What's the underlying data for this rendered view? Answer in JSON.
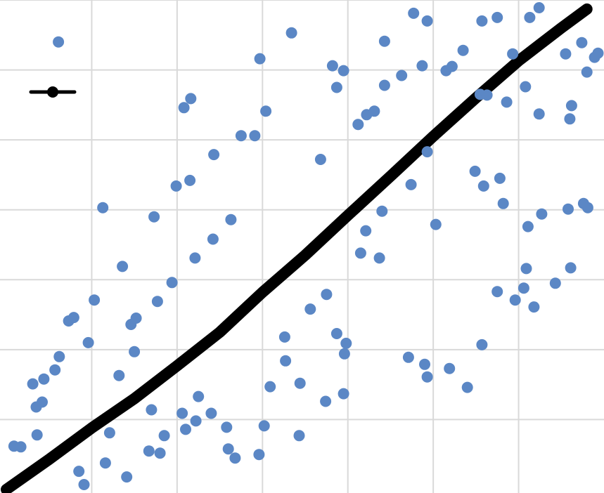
{
  "chart_data": {
    "type": "scatter",
    "title": "",
    "xlabel": "",
    "ylabel": "",
    "xlim": [
      0,
      7
    ],
    "ylim": [
      0,
      7
    ],
    "grid": true,
    "x_gridlines": [
      1,
      2,
      3,
      4,
      5,
      6
    ],
    "y_gridlines": [
      1,
      2,
      3,
      4,
      5,
      6,
      7
    ],
    "legend": {
      "placement": "top-left",
      "entries": [
        {
          "marker": "line-with-dot",
          "color": "#000000",
          "label": ""
        }
      ]
    },
    "series": [
      {
        "color": "#000000",
        "style": "dense-diagonal-line",
        "points": [
          [
            0,
            0
          ],
          [
            0.5,
            0.43
          ],
          [
            1,
            0.88
          ],
          [
            1.5,
            1.3
          ],
          [
            2,
            1.77
          ],
          [
            2.5,
            2.25
          ],
          [
            3,
            2.82
          ],
          [
            3.5,
            3.35
          ],
          [
            4,
            3.92
          ],
          [
            4.5,
            4.48
          ],
          [
            5,
            5.05
          ],
          [
            5.5,
            5.6
          ],
          [
            6,
            6.13
          ],
          [
            6.5,
            6.6
          ],
          [
            6.8,
            6.87
          ]
        ]
      },
      {
        "color": "#5b87c5",
        "style": "markers",
        "points": [
          [
            0.61,
            6.4
          ],
          [
            0.09,
            0.62
          ],
          [
            0.17,
            0.61
          ],
          [
            0.36,
            0.78
          ],
          [
            0.35,
            1.18
          ],
          [
            0.31,
            1.51
          ],
          [
            0.42,
            1.25
          ],
          [
            0.44,
            1.58
          ],
          [
            0.57,
            1.71
          ],
          [
            0.62,
            1.9
          ],
          [
            0.73,
            2.41
          ],
          [
            0.79,
            2.46
          ],
          [
            0.96,
            2.1
          ],
          [
            1.03,
            2.71
          ],
          [
            1.13,
            4.03
          ],
          [
            1.36,
            3.19
          ],
          [
            0.85,
            0.26
          ],
          [
            0.91,
            0.07
          ],
          [
            1.16,
            0.38
          ],
          [
            1.21,
            0.81
          ],
          [
            1.41,
            0.18
          ],
          [
            1.73,
            3.9
          ],
          [
            2.08,
            5.46
          ],
          [
            2.16,
            5.59
          ],
          [
            1.99,
            4.34
          ],
          [
            2.15,
            4.42
          ],
          [
            2.43,
            4.79
          ],
          [
            1.32,
            1.63
          ],
          [
            1.5,
            1.97
          ],
          [
            1.46,
            2.36
          ],
          [
            1.52,
            2.45
          ],
          [
            1.77,
            2.69
          ],
          [
            1.94,
            2.96
          ],
          [
            2.21,
            3.31
          ],
          [
            2.42,
            3.58
          ],
          [
            2.63,
            3.86
          ],
          [
            2.75,
            5.06
          ],
          [
            2.97,
            6.16
          ],
          [
            2.91,
            5.06
          ],
          [
            3.04,
            5.41
          ],
          [
            3.34,
            6.53
          ],
          [
            3.68,
            4.72
          ],
          [
            3.82,
            6.06
          ],
          [
            3.95,
            5.99
          ],
          [
            3.87,
            5.75
          ],
          [
            4.12,
            5.22
          ],
          [
            4.22,
            5.36
          ],
          [
            4.31,
            5.41
          ],
          [
            4.43,
            5.78
          ],
          [
            4.63,
            5.92
          ],
          [
            4.87,
            6.06
          ],
          [
            4.93,
            6.7
          ],
          [
            4.43,
            6.41
          ],
          [
            4.77,
            6.81
          ],
          [
            5.57,
            6.7
          ],
          [
            5.75,
            6.75
          ],
          [
            5.93,
            6.23
          ],
          [
            6.13,
            6.75
          ],
          [
            6.24,
            6.89
          ],
          [
            5.15,
            5.99
          ],
          [
            5.22,
            6.05
          ],
          [
            5.35,
            6.28
          ],
          [
            5.55,
            5.65
          ],
          [
            5.63,
            5.64
          ],
          [
            5.86,
            5.54
          ],
          [
            6.24,
            5.37
          ],
          [
            6.55,
            6.23
          ],
          [
            6.62,
            5.49
          ],
          [
            6.74,
            6.39
          ],
          [
            6.8,
            5.97
          ],
          [
            6.89,
            6.18
          ],
          [
            6.93,
            6.24
          ],
          [
            6.6,
            5.3
          ],
          [
            4.74,
            4.36
          ],
          [
            4.93,
            4.83
          ],
          [
            5.03,
            3.79
          ],
          [
            4.21,
            3.7
          ],
          [
            4.15,
            3.38
          ],
          [
            4.37,
            3.31
          ],
          [
            3.95,
            1.37
          ],
          [
            3.44,
            1.52
          ],
          [
            3.27,
            1.84
          ],
          [
            3.09,
            1.47
          ],
          [
            3.26,
            2.18
          ],
          [
            3.56,
            2.58
          ],
          [
            3.75,
            2.79
          ],
          [
            3.87,
            2.23
          ],
          [
            3.98,
            2.09
          ],
          [
            3.74,
            1.26
          ],
          [
            3.96,
            1.94
          ],
          [
            4.71,
            1.89
          ],
          [
            4.9,
            1.79
          ],
          [
            4.93,
            1.61
          ],
          [
            5.19,
            1.73
          ],
          [
            5.4,
            1.46
          ],
          [
            5.57,
            2.07
          ],
          [
            5.75,
            2.83
          ],
          [
            5.96,
            2.71
          ],
          [
            6.18,
            2.61
          ],
          [
            6.43,
            2.95
          ],
          [
            6.61,
            3.17
          ],
          [
            6.76,
            4.09
          ],
          [
            6.81,
            4.03
          ],
          [
            6.58,
            4.01
          ],
          [
            6.09,
            3.16
          ],
          [
            6.06,
            2.88
          ],
          [
            6.11,
            3.76
          ],
          [
            6.27,
            3.94
          ],
          [
            5.59,
            4.34
          ],
          [
            5.78,
            4.45
          ],
          [
            5.82,
            4.09
          ],
          [
            6.08,
            5.76
          ],
          [
            5.49,
            4.55
          ],
          [
            4.4,
            3.98
          ],
          [
            2.1,
            0.86
          ],
          [
            2.22,
            0.98
          ],
          [
            2.58,
            0.89
          ],
          [
            3.02,
            0.91
          ],
          [
            3.43,
            0.77
          ],
          [
            2.96,
            0.5
          ],
          [
            2.6,
            0.58
          ],
          [
            2.68,
            0.45
          ],
          [
            1.8,
            0.52
          ],
          [
            1.67,
            0.55
          ],
          [
            1.85,
            0.77
          ],
          [
            2.25,
            1.33
          ],
          [
            2.4,
            1.09
          ],
          [
            2.06,
            1.09
          ],
          [
            1.7,
            1.14
          ]
        ]
      }
    ]
  }
}
